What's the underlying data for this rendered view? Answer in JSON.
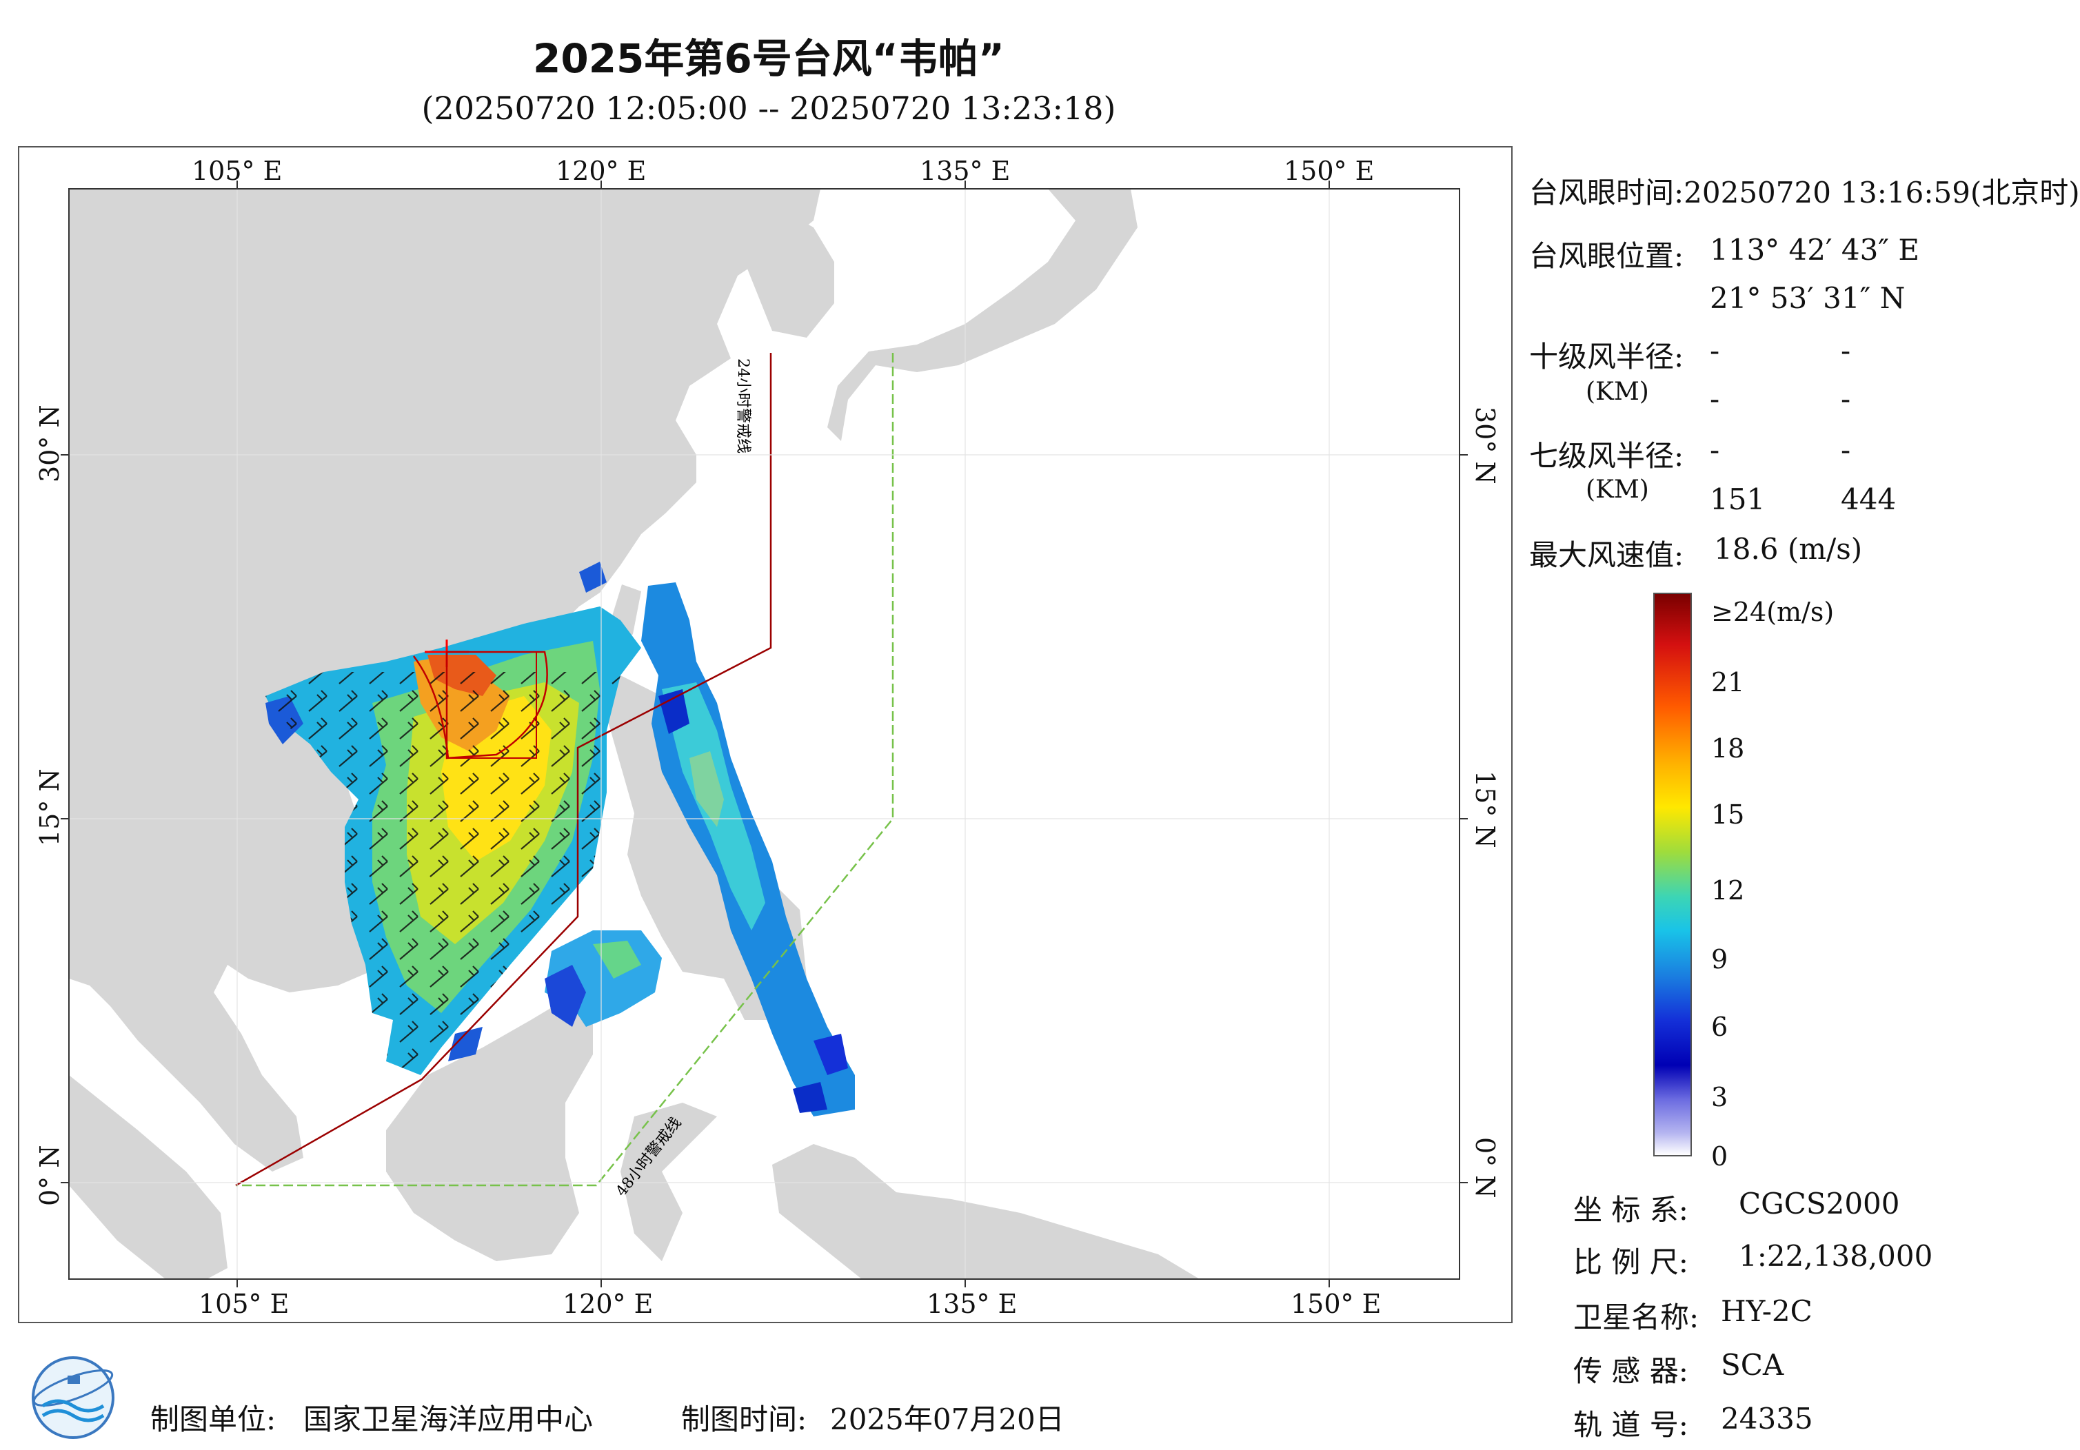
{
  "header": {
    "title": "2025年第6号台风“韦帕”",
    "subtitle": "(20250720 12:05:00 -- 20250720 13:23:18)"
  },
  "map": {
    "lon_ticks": [
      "105° E",
      "120° E",
      "135° E",
      "150° E"
    ],
    "lat_ticks": [
      "30° N",
      "15° N",
      "0° N"
    ],
    "warning_line_24": "24小时警戒线",
    "warning_line_48": "48小时警戒线",
    "colors": {
      "land": "#d6d6d6",
      "sea": "#ffffff",
      "line24": "#9b0000",
      "line48": "#77c24a",
      "eye": "#ff0000"
    }
  },
  "info": {
    "eye_time_label": "台风眼时间:",
    "eye_time_value": "20250720 13:16:59(北京时)",
    "eye_pos_label": "台风眼位置:",
    "eye_lon": "113° 42′ 43″ E",
    "eye_lat": "21° 53′ 31″ N",
    "r10_label": "十级风半径:",
    "r10_unit": "(KM)",
    "r10_values": [
      "-",
      "-",
      "-",
      "-"
    ],
    "r7_label": "七级风半径:",
    "r7_unit": "(KM)",
    "r7_values": [
      "-",
      "-",
      "151",
      "444"
    ],
    "max_label": "最大风速值:",
    "max_value": "18.6  (m/s)"
  },
  "colorbar": {
    "labels": [
      "≥24(m/s)",
      "21",
      "18",
      "15",
      "12",
      "9",
      "6",
      "3",
      "0"
    ],
    "colors": [
      "#7a0000",
      "#d41010",
      "#ff5a00",
      "#ffb000",
      "#ffe800",
      "#9fdc3c",
      "#3cd5b5",
      "#19c3e8",
      "#1a7fe0",
      "#1430d8",
      "#0000b4",
      "#6a6ae0",
      "#b4b4f0",
      "#ffffff"
    ]
  },
  "meta": {
    "crs_label": "坐 标 系:",
    "crs_value": "CGCS2000",
    "scale_label": "比 例 尺:",
    "scale_value": "1:22,138,000",
    "sat_label": "卫星名称:",
    "sat_value": "HY-2C",
    "sensor_label": "传 感 器:",
    "sensor_value": "SCA",
    "orbit_label": "轨 道 号:",
    "orbit_value": "24335"
  },
  "footer": {
    "maker_label": "制图单位:",
    "maker_value": "国家卫星海洋应用中心",
    "date_label": "制图时间:",
    "date_value": "2025年07月20日"
  }
}
